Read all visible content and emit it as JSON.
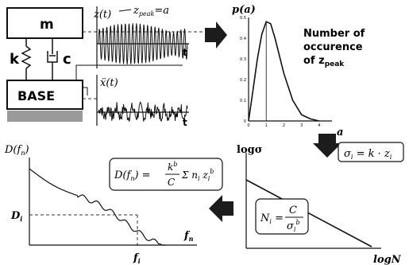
{
  "system": {
    "mass_label": "m",
    "spring_label": "k",
    "damper_label": "c",
    "base_label": "BASE"
  },
  "response_plot": {
    "y_label": "z(t)",
    "peak_label": "z",
    "peak_subscript": "peak",
    "peak_value": "=a",
    "t_label": "t"
  },
  "input_plot": {
    "y_label": "ẍ(t)",
    "t_label": "t"
  },
  "pdf_plot": {
    "y_label": "p(a)",
    "x_label": "a",
    "annotation_line1": "Number of",
    "annotation_line2": "occurence",
    "annotation_line3_main": "of z",
    "annotation_line3_sub": "peak",
    "y_ticks": [
      "0.5",
      "0.4",
      "0.3",
      "0.2",
      "0.1",
      "0"
    ],
    "x_ticks": [
      "0",
      "1",
      "2",
      "3",
      "4"
    ]
  },
  "sn_plot": {
    "y_label": "logσ",
    "x_label": "logN",
    "stress_formula": "σ_i = k · z_i",
    "cycles_formula_lhs": "N_i =",
    "cycles_formula_num": "C",
    "cycles_formula_den": "σ_i^b"
  },
  "damage_plot": {
    "y_label": "D(f_n)",
    "x_label": "f_n",
    "di_label": "D_i",
    "fi_label": "f_i",
    "formula_lhs": "D(f_n) =",
    "formula_num": "k^b",
    "formula_den": "C",
    "formula_rhs": "Σ n_i z_i^b"
  },
  "colors": {
    "ink": "#111111",
    "arrow": "#1c1c1c",
    "base_hatch": "#9a9a9a",
    "dashed": "#333333"
  },
  "chart_data": {
    "type": "line",
    "title": "",
    "xlabel": "a",
    "ylabel": "p(a)",
    "x": [
      0,
      0.25,
      0.5,
      0.75,
      1.0,
      1.25,
      1.5,
      2.0,
      2.5,
      3.0,
      3.5,
      4.0
    ],
    "series": [
      {
        "values": [
          0.0,
          0.15,
          0.3,
          0.42,
          0.48,
          0.47,
          0.4,
          0.23,
          0.1,
          0.03,
          0.01,
          0.0
        ]
      }
    ],
    "xlim": [
      0,
      4.5
    ],
    "ylim": [
      0,
      0.5
    ]
  }
}
